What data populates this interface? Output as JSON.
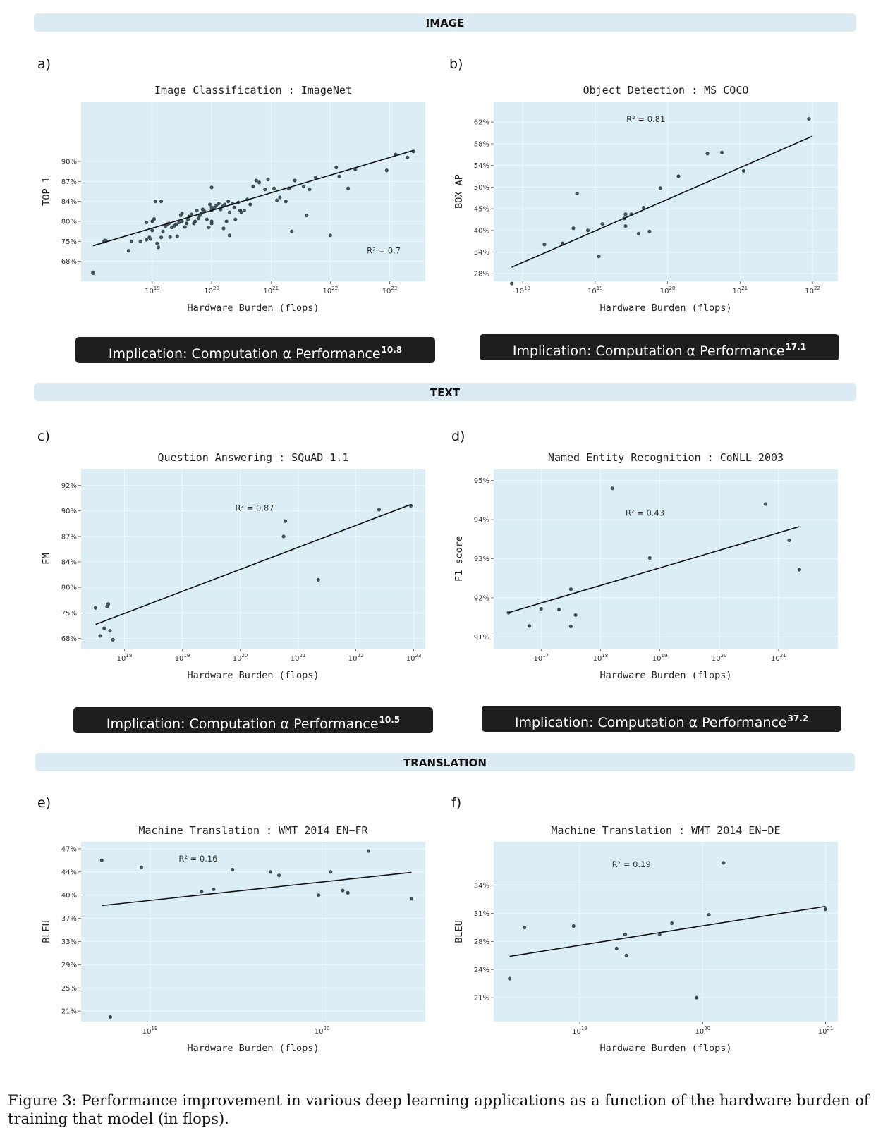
{
  "sections": {
    "image": "IMAGE",
    "text": "TEXT",
    "translation": "TRANSLATION"
  },
  "caption": "Figure 3: Performance improvement in various deep learning applications as a function of the hardware burden of training that model (in flops).",
  "chart_data": [
    {
      "id": "a",
      "letter": "a)",
      "type": "scatter",
      "title": "Image Classification : ImageNet",
      "xlabel": "Hardware Burden (flops)",
      "ylabel": "TOP 1",
      "x_scale": "log10",
      "xlim_exp": [
        17.8,
        23.6
      ],
      "ylim": [
        0,
        9
      ],
      "y_ticks": [
        {
          "v": 1,
          "label": "68%"
        },
        {
          "v": 2,
          "label": "75%"
        },
        {
          "v": 3,
          "label": "80%"
        },
        {
          "v": 4,
          "label": "84%"
        },
        {
          "v": 5,
          "label": "87%"
        },
        {
          "v": 6,
          "label": "90%"
        }
      ],
      "x_ticks": [
        19,
        20,
        21,
        22,
        23
      ],
      "r2": "R² = 0.7",
      "r2_pos": [
        22.9,
        1.4
      ],
      "fit": [
        [
          18.0,
          1.78
        ],
        [
          23.4,
          6.55
        ]
      ],
      "points": [
        [
          18.0,
          0.4
        ],
        [
          18.0,
          0.45
        ],
        [
          18.18,
          1.98
        ],
        [
          18.2,
          2.05
        ],
        [
          18.22,
          2.03
        ],
        [
          18.6,
          1.53
        ],
        [
          18.65,
          2.0
        ],
        [
          18.8,
          2.0
        ],
        [
          18.9,
          2.08
        ],
        [
          18.95,
          2.2
        ],
        [
          18.97,
          2.12
        ],
        [
          19.0,
          2.55
        ],
        [
          19.0,
          3.0
        ],
        [
          19.03,
          3.12
        ],
        [
          19.05,
          4.0
        ],
        [
          19.08,
          1.9
        ],
        [
          19.1,
          1.7
        ],
        [
          19.15,
          2.2
        ],
        [
          19.18,
          2.5
        ],
        [
          19.22,
          2.75
        ],
        [
          19.25,
          2.85
        ],
        [
          19.28,
          2.9
        ],
        [
          19.3,
          2.22
        ],
        [
          19.33,
          2.7
        ],
        [
          19.37,
          2.78
        ],
        [
          19.4,
          2.85
        ],
        [
          19.42,
          2.25
        ],
        [
          19.45,
          2.95
        ],
        [
          19.48,
          3.3
        ],
        [
          19.5,
          3.0
        ],
        [
          19.5,
          3.4
        ],
        [
          19.55,
          2.72
        ],
        [
          19.58,
          2.9
        ],
        [
          19.6,
          3.1
        ],
        [
          19.62,
          3.25
        ],
        [
          19.66,
          3.35
        ],
        [
          19.7,
          2.9
        ],
        [
          19.72,
          3.0
        ],
        [
          19.75,
          3.55
        ],
        [
          19.78,
          3.15
        ],
        [
          19.8,
          3.3
        ],
        [
          19.82,
          3.4
        ],
        [
          19.85,
          3.6
        ],
        [
          19.88,
          3.5
        ],
        [
          19.92,
          3.1
        ],
        [
          19.95,
          2.7
        ],
        [
          19.97,
          3.85
        ],
        [
          20.0,
          2.9
        ],
        [
          20.0,
          3.55
        ],
        [
          20.02,
          3.65
        ],
        [
          20.05,
          3.7
        ],
        [
          20.08,
          3.8
        ],
        [
          20.12,
          3.9
        ],
        [
          20.15,
          3.6
        ],
        [
          20.18,
          3.75
        ],
        [
          20.2,
          2.65
        ],
        [
          20.22,
          3.85
        ],
        [
          20.25,
          3.0
        ],
        [
          20.28,
          4.0
        ],
        [
          20.0,
          3.0
        ],
        [
          20.0,
          4.7
        ],
        [
          20.3,
          3.45
        ],
        [
          20.35,
          3.9
        ],
        [
          20.38,
          3.7
        ],
        [
          20.4,
          3.1
        ],
        [
          20.45,
          3.95
        ],
        [
          20.48,
          3.55
        ],
        [
          20.5,
          3.45
        ],
        [
          20.55,
          3.55
        ],
        [
          20.6,
          4.1
        ],
        [
          20.65,
          3.85
        ],
        [
          20.7,
          4.75
        ],
        [
          20.75,
          5.05
        ],
        [
          20.8,
          4.95
        ],
        [
          20.9,
          4.6
        ],
        [
          20.95,
          5.1
        ],
        [
          21.05,
          4.65
        ],
        [
          21.1,
          4.05
        ],
        [
          21.15,
          4.2
        ],
        [
          21.25,
          4.0
        ],
        [
          21.3,
          4.65
        ],
        [
          21.35,
          2.5
        ],
        [
          21.4,
          5.05
        ],
        [
          21.55,
          4.75
        ],
        [
          21.6,
          3.3
        ],
        [
          21.65,
          4.6
        ],
        [
          21.75,
          5.2
        ],
        [
          22.0,
          2.3
        ],
        [
          22.1,
          5.7
        ],
        [
          22.15,
          5.25
        ],
        [
          22.3,
          4.65
        ],
        [
          22.42,
          5.6
        ],
        [
          22.95,
          5.55
        ],
        [
          23.1,
          6.35
        ],
        [
          23.3,
          6.2
        ],
        [
          23.4,
          6.5
        ],
        [
          19.15,
          4.0
        ],
        [
          20.0,
          3.7
        ],
        [
          20.3,
          2.3
        ],
        [
          18.9,
          2.95
        ]
      ]
    },
    {
      "id": "b",
      "letter": "b)",
      "type": "scatter",
      "title": "Object Detection : MS COCO",
      "xlabel": "Hardware Burden (flops)",
      "ylabel": "BOX AP",
      "x_scale": "log10",
      "xlim_exp": [
        17.6,
        22.35
      ],
      "ylim": [
        0.65,
        8.95
      ],
      "y_ticks": [
        {
          "v": 1,
          "label": "28%"
        },
        {
          "v": 2,
          "label": "34%"
        },
        {
          "v": 3,
          "label": "40%"
        },
        {
          "v": 4,
          "label": "45%"
        },
        {
          "v": 5,
          "label": "50%"
        },
        {
          "v": 6,
          "label": "54%"
        },
        {
          "v": 7,
          "label": "58%"
        },
        {
          "v": 8,
          "label": "62%"
        }
      ],
      "x_ticks": [
        18,
        19,
        20,
        21,
        22
      ],
      "r2": "R² = 0.81",
      "r2_pos": [
        19.7,
        8.0
      ],
      "fit": [
        [
          17.85,
          1.3
        ],
        [
          22.0,
          7.35
        ]
      ],
      "points": [
        [
          17.85,
          0.55
        ],
        [
          18.3,
          2.35
        ],
        [
          18.55,
          2.4
        ],
        [
          18.7,
          3.1
        ],
        [
          18.75,
          4.7
        ],
        [
          18.9,
          3.0
        ],
        [
          19.05,
          1.8
        ],
        [
          19.1,
          3.3
        ],
        [
          19.4,
          3.55
        ],
        [
          19.42,
          3.75
        ],
        [
          19.5,
          3.75
        ],
        [
          19.6,
          2.85
        ],
        [
          19.67,
          4.05
        ],
        [
          19.75,
          2.95
        ],
        [
          19.9,
          4.95
        ],
        [
          20.15,
          5.5
        ],
        [
          20.55,
          6.55
        ],
        [
          20.75,
          6.6
        ],
        [
          21.05,
          5.75
        ],
        [
          21.95,
          8.15
        ],
        [
          19.42,
          3.2
        ]
      ]
    },
    {
      "id": "c",
      "letter": "c)",
      "type": "scatter",
      "title": "Question Answering : SQuAD 1.1",
      "xlabel": "Hardware Burden (flops)",
      "ylabel": "EM",
      "x_scale": "log10",
      "xlim_exp": [
        17.25,
        23.2
      ],
      "ylim": [
        0.6,
        7.65
      ],
      "y_ticks": [
        {
          "v": 1,
          "label": "68%"
        },
        {
          "v": 2,
          "label": "75%"
        },
        {
          "v": 3,
          "label": "80%"
        },
        {
          "v": 4,
          "label": "84%"
        },
        {
          "v": 5,
          "label": "87%"
        },
        {
          "v": 6,
          "label": "90%"
        },
        {
          "v": 7,
          "label": "92%"
        }
      ],
      "x_ticks": [
        18,
        19,
        20,
        21,
        22,
        23
      ],
      "r2": "R² = 0.87",
      "r2_pos": [
        20.25,
        6.0
      ],
      "fit": [
        [
          17.5,
          1.55
        ],
        [
          22.95,
          6.25
        ]
      ],
      "points": [
        [
          17.5,
          2.2
        ],
        [
          17.58,
          1.1
        ],
        [
          17.65,
          1.4
        ],
        [
          17.7,
          2.25
        ],
        [
          17.72,
          2.35
        ],
        [
          17.75,
          1.3
        ],
        [
          17.8,
          0.95
        ],
        [
          20.75,
          5.0
        ],
        [
          20.78,
          5.6
        ],
        [
          21.35,
          3.3
        ],
        [
          22.4,
          6.05
        ],
        [
          22.95,
          6.2
        ]
      ]
    },
    {
      "id": "d",
      "letter": "d)",
      "type": "scatter",
      "title": "Named Entity Recognition : CoNLL 2003",
      "xlabel": "Hardware Burden (flops)",
      "ylabel": "F1 score",
      "x_scale": "log10",
      "xlim_exp": [
        16.2,
        22.0
      ],
      "ylim": [
        90.7,
        95.3
      ],
      "y_ticks": [
        {
          "v": 91,
          "label": "91%"
        },
        {
          "v": 92,
          "label": "92%"
        },
        {
          "v": 93,
          "label": "93%"
        },
        {
          "v": 94,
          "label": "94%"
        },
        {
          "v": 95,
          "label": "95%"
        }
      ],
      "x_ticks": [
        17,
        18,
        19,
        20,
        21
      ],
      "r2": "R² = 0.43",
      "r2_pos": [
        18.75,
        94.1
      ],
      "fit": [
        [
          16.45,
          91.62
        ],
        [
          21.35,
          93.82
        ]
      ],
      "points": [
        [
          16.45,
          91.62
        ],
        [
          16.8,
          91.28
        ],
        [
          17.0,
          91.72
        ],
        [
          17.3,
          91.7
        ],
        [
          17.5,
          92.22
        ],
        [
          17.5,
          91.27
        ],
        [
          17.58,
          91.56
        ],
        [
          18.2,
          94.8
        ],
        [
          18.83,
          93.02
        ],
        [
          20.78,
          94.4
        ],
        [
          21.18,
          93.47
        ],
        [
          21.35,
          92.72
        ]
      ]
    },
    {
      "id": "e",
      "letter": "e)",
      "type": "scatter",
      "title": "Machine Translation : WMT 2014 EN−FR",
      "xlabel": "Hardware Burden (flops)",
      "ylabel": "BLEU",
      "x_scale": "log10",
      "xlim_exp": [
        18.6,
        20.6
      ],
      "ylim": [
        0.55,
        8.3
      ],
      "y_ticks": [
        {
          "v": 1,
          "label": "21%"
        },
        {
          "v": 2,
          "label": "25%"
        },
        {
          "v": 3,
          "label": "29%"
        },
        {
          "v": 4,
          "label": "33%"
        },
        {
          "v": 5,
          "label": "37%"
        },
        {
          "v": 6,
          "label": "40%"
        },
        {
          "v": 7,
          "label": "44%"
        },
        {
          "v": 8,
          "label": "47%"
        }
      ],
      "x_ticks": [
        19,
        20
      ],
      "r2": "R² = 0.16",
      "r2_pos": [
        19.28,
        7.45
      ],
      "fit": [
        [
          18.72,
          5.55
        ],
        [
          20.52,
          6.98
        ]
      ],
      "points": [
        [
          18.72,
          7.5
        ],
        [
          18.77,
          0.75
        ],
        [
          18.95,
          7.2
        ],
        [
          19.3,
          6.15
        ],
        [
          19.37,
          6.25
        ],
        [
          19.48,
          7.1
        ],
        [
          19.7,
          7.0
        ],
        [
          19.75,
          6.85
        ],
        [
          19.98,
          6.0
        ],
        [
          20.05,
          7.0
        ],
        [
          20.12,
          6.2
        ],
        [
          20.15,
          6.1
        ],
        [
          20.27,
          7.9
        ],
        [
          20.52,
          5.85
        ]
      ]
    },
    {
      "id": "f",
      "letter": "f)",
      "type": "scatter",
      "title": "Machine Translation : WMT 2014 EN−DE",
      "xlabel": "Hardware Burden (flops)",
      "ylabel": "BLEU",
      "x_scale": "log10",
      "xlim_exp": [
        18.3,
        21.1
      ],
      "ylim": [
        0.15,
        6.55
      ],
      "y_ticks": [
        {
          "v": 1,
          "label": "21%"
        },
        {
          "v": 2,
          "label": "24%"
        },
        {
          "v": 3,
          "label": "28%"
        },
        {
          "v": 4,
          "label": "31%"
        },
        {
          "v": 5,
          "label": "34%"
        }
      ],
      "x_ticks": [
        19,
        20,
        21
      ],
      "r2": "R² = 0.19",
      "r2_pos": [
        19.42,
        5.65
      ],
      "fit": [
        [
          18.43,
          2.47
        ],
        [
          21.0,
          4.25
        ]
      ],
      "points": [
        [
          18.43,
          1.68
        ],
        [
          18.55,
          3.5
        ],
        [
          18.95,
          3.55
        ],
        [
          19.3,
          2.75
        ],
        [
          19.37,
          3.25
        ],
        [
          19.38,
          2.5
        ],
        [
          19.65,
          3.25
        ],
        [
          19.75,
          3.65
        ],
        [
          19.95,
          1.0
        ],
        [
          20.05,
          3.95
        ],
        [
          20.17,
          5.8
        ],
        [
          21.0,
          4.15
        ]
      ]
    }
  ],
  "implications": [
    {
      "text": "Implication: Computation α Performance",
      "exp": "10.8"
    },
    {
      "text": "Implication: Computation α Performance",
      "exp": "17.1"
    },
    {
      "text": "Implication: Computation α Performance",
      "exp": "10.5"
    },
    {
      "text": "Implication: Computation α Performance",
      "exp": "37.2"
    }
  ]
}
